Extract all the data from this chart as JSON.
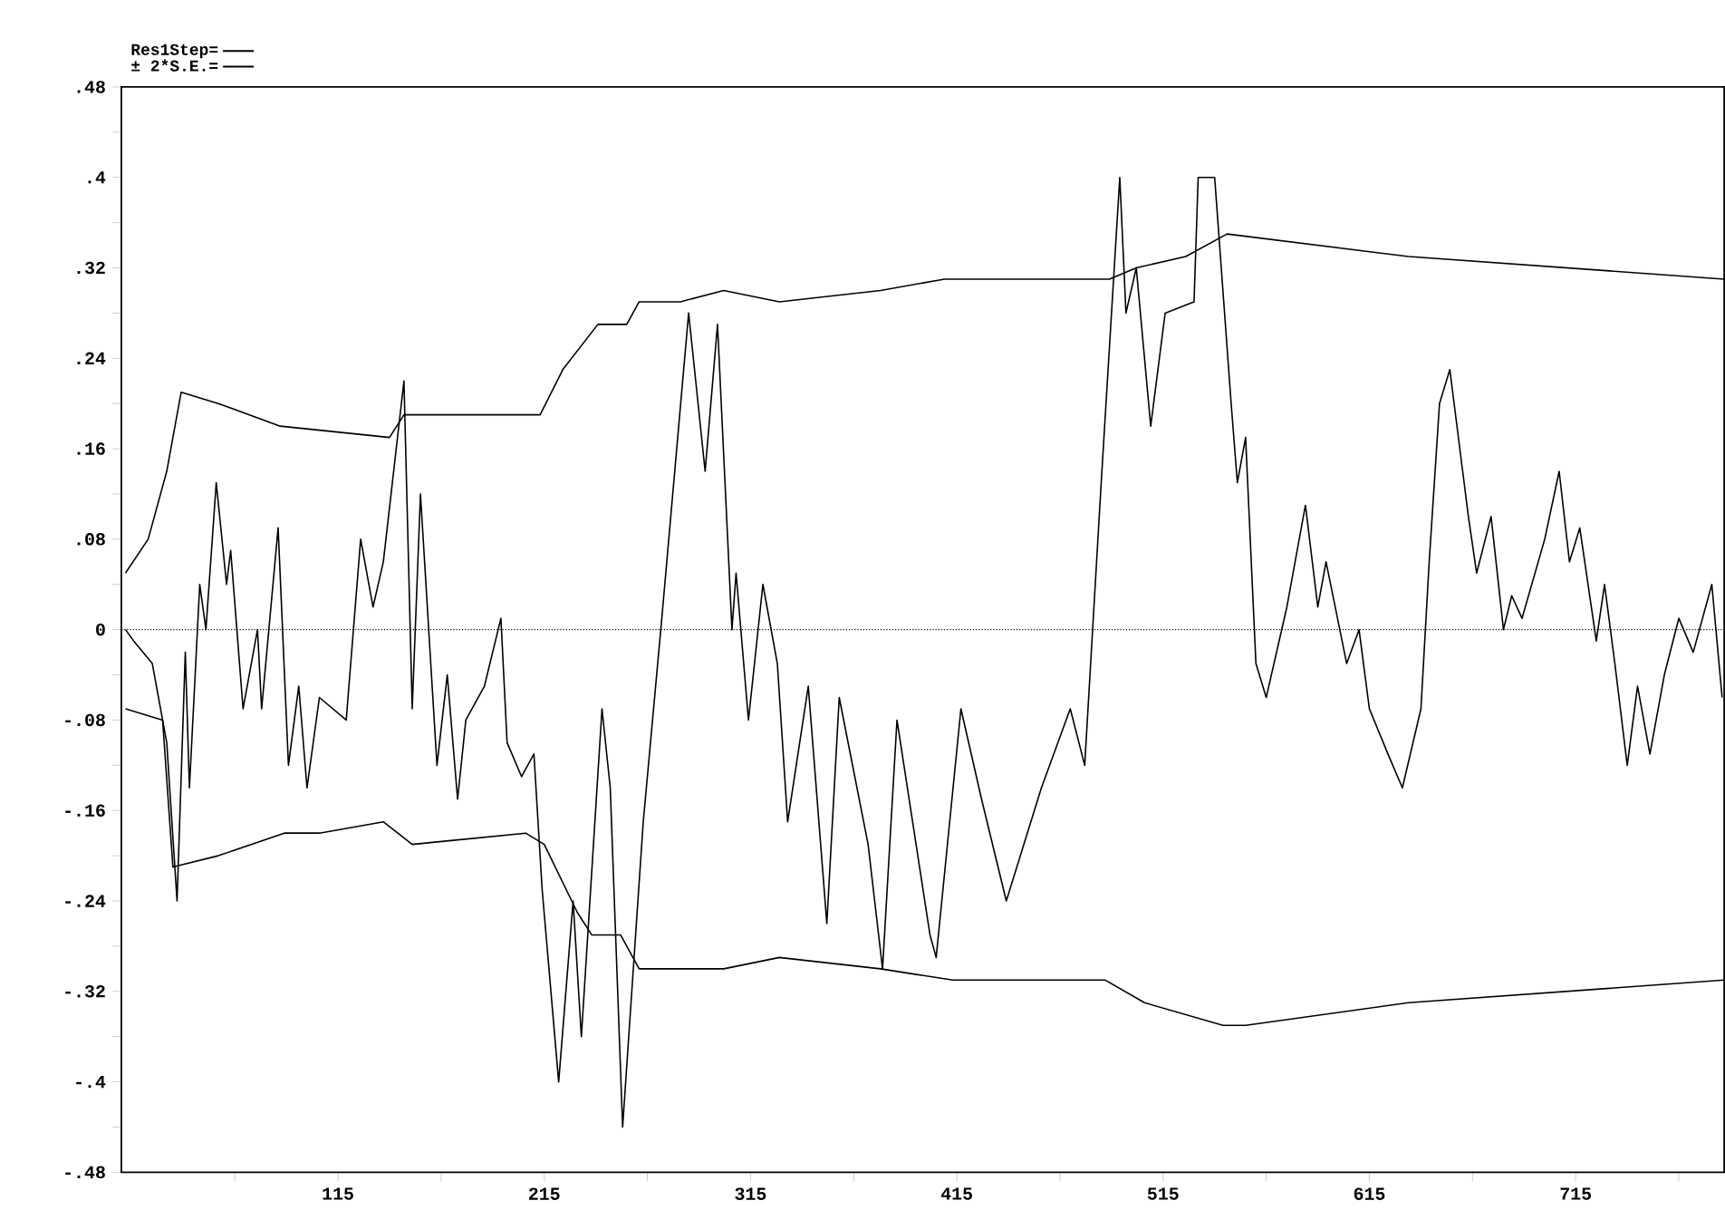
{
  "chart_data": {
    "type": "line",
    "legend": "top left",
    "xlim": [
      10,
      787
    ],
    "ylim": [
      -0.48,
      0.48
    ],
    "xticks": [
      {
        "value": 65,
        "label": null
      },
      115,
      {
        "value": 165,
        "label": null
      },
      215,
      {
        "value": 265,
        "label": null
      },
      315,
      {
        "value": 365,
        "label": null
      },
      415,
      {
        "value": 465,
        "label": null
      },
      515,
      {
        "value": 565,
        "label": null
      },
      615,
      {
        "value": 665,
        "label": null
      },
      715,
      {
        "value": 765,
        "label": null
      }
    ],
    "yticks": [
      {
        "value": -0.48,
        "label": "-.48"
      },
      {
        "value": -0.44,
        "label": null
      },
      {
        "value": -0.4,
        "label": "-.4"
      },
      {
        "value": -0.36,
        "label": null
      },
      {
        "value": -0.32,
        "label": "-.32"
      },
      {
        "value": -0.28,
        "label": null
      },
      {
        "value": -0.24,
        "label": "-.24"
      },
      {
        "value": -0.2,
        "label": null
      },
      {
        "value": -0.16,
        "label": "-.16"
      },
      {
        "value": -0.12,
        "label": null
      },
      {
        "value": -0.08,
        "label": "-.08"
      },
      {
        "value": -0.04,
        "label": null
      },
      0,
      {
        "value": 0.04,
        "label": null
      },
      {
        "value": 0.08,
        "label": ".08"
      },
      {
        "value": 0.12,
        "label": null
      },
      {
        "value": 0.16,
        "label": ".16"
      },
      {
        "value": 0.2,
        "label": null
      },
      {
        "value": 0.24,
        "label": ".24"
      },
      {
        "value": 0.28,
        "label": null
      },
      {
        "value": 0.32,
        "label": ".32"
      },
      {
        "value": 0.36,
        "label": null
      },
      {
        "value": 0.4,
        "label": ".4"
      },
      {
        "value": 0.44,
        "label": null
      },
      {
        "value": 0.48,
        "label": ".48"
      }
    ],
    "ref_lines": [
      {
        "axis": "y",
        "value": 0,
        "line_style": "dotted",
        "color": "#000000"
      }
    ],
    "series": [
      {
        "name": "Res1Step=",
        "color": "#000000",
        "x": [
          12,
          16,
          25,
          32,
          37,
          41,
          43,
          48,
          51,
          56,
          61,
          63,
          69,
          76,
          78,
          86,
          91,
          96,
          100,
          106,
          119,
          126,
          132,
          137,
          147,
          151,
          155,
          163,
          168,
          173,
          177,
          186,
          194,
          197,
          204,
          210,
          214,
          222,
          229,
          233,
          243,
          247,
          253,
          263,
          272,
          285,
          293,
          299,
          306,
          308,
          314,
          321,
          328,
          333,
          343,
          352,
          358,
          372,
          379,
          386,
          402,
          405,
          417,
          427,
          439,
          456,
          470,
          477,
          485,
          494,
          497,
          502,
          509,
          516,
          530,
          532,
          540,
          548,
          551,
          555,
          560,
          565,
          575,
          584,
          590,
          594,
          604,
          610,
          615,
          624,
          631,
          640,
          644,
          649,
          654,
          663,
          667,
          674,
          680,
          684,
          689,
          700,
          707,
          712,
          717,
          725,
          729,
          734,
          740,
          745,
          751,
          758,
          765,
          772,
          781,
          786
        ],
        "values": [
          0,
          -0.01,
          -0.03,
          -0.1,
          -0.24,
          -0.02,
          -0.14,
          0.04,
          0,
          0.13,
          0.04,
          0.07,
          -0.07,
          0,
          -0.07,
          0.09,
          -0.12,
          -0.05,
          -0.14,
          -0.06,
          -0.08,
          0.08,
          0.02,
          0.06,
          0.22,
          -0.07,
          0.12,
          -0.12,
          -0.04,
          -0.15,
          -0.08,
          -0.05,
          0.01,
          -0.1,
          -0.13,
          -0.11,
          -0.23,
          -0.4,
          -0.24,
          -0.36,
          -0.07,
          -0.14,
          -0.44,
          -0.17,
          0.01,
          0.28,
          0.14,
          0.27,
          0,
          0.05,
          -0.08,
          0.04,
          -0.03,
          -0.17,
          -0.05,
          -0.26,
          -0.06,
          -0.19,
          -0.3,
          -0.08,
          -0.27,
          -0.29,
          -0.07,
          -0.15,
          -0.24,
          -0.14,
          -0.07,
          -0.12,
          0.13,
          0.4,
          0.28,
          0.32,
          0.18,
          0.28,
          0.29,
          0.4,
          0.4,
          0.2,
          0.13,
          0.17,
          -0.03,
          -0.06,
          0.02,
          0.11,
          0.02,
          0.06,
          -0.03,
          0,
          -0.07,
          -0.11,
          -0.14,
          -0.07,
          0.06,
          0.2,
          0.23,
          0.1,
          0.05,
          0.1,
          0,
          0.03,
          0.01,
          0.08,
          0.14,
          0.06,
          0.09,
          -0.01,
          0.04,
          -0.03,
          -0.12,
          -0.05,
          -0.11,
          -0.04,
          0.01,
          -0.02,
          0.04,
          -0.06
        ]
      },
      {
        "name": "± 2*S.E.=",
        "color": "#000000",
        "x": [
          12,
          23,
          32,
          39,
          57,
          87,
          140,
          147,
          199,
          213,
          224,
          241,
          255,
          261,
          281,
          302,
          329,
          378,
          409,
          478,
          489,
          502,
          526,
          546,
          634,
          787
        ],
        "values": [
          0.05,
          0.08,
          0.14,
          0.21,
          0.2,
          0.18,
          0.17,
          0.19,
          0.19,
          0.19,
          0.23,
          0.27,
          0.27,
          0.29,
          0.29,
          0.3,
          0.29,
          0.3,
          0.31,
          0.31,
          0.31,
          0.32,
          0.33,
          0.35,
          0.33,
          0.31
        ]
      },
      {
        "color": "#000000",
        "x": [
          12,
          30,
          35,
          57,
          89,
          106,
          137,
          151,
          206,
          215,
          231,
          238,
          252,
          261,
          302,
          329,
          378,
          413,
          478,
          487,
          506,
          544,
          555,
          634,
          787
        ],
        "values": [
          -0.07,
          -0.08,
          -0.21,
          -0.2,
          -0.18,
          -0.18,
          -0.17,
          -0.19,
          -0.18,
          -0.19,
          -0.25,
          -0.27,
          -0.27,
          -0.3,
          -0.3,
          -0.29,
          -0.3,
          -0.31,
          -0.31,
          -0.31,
          -0.33,
          -0.35,
          -0.35,
          -0.33,
          -0.31
        ]
      }
    ]
  }
}
